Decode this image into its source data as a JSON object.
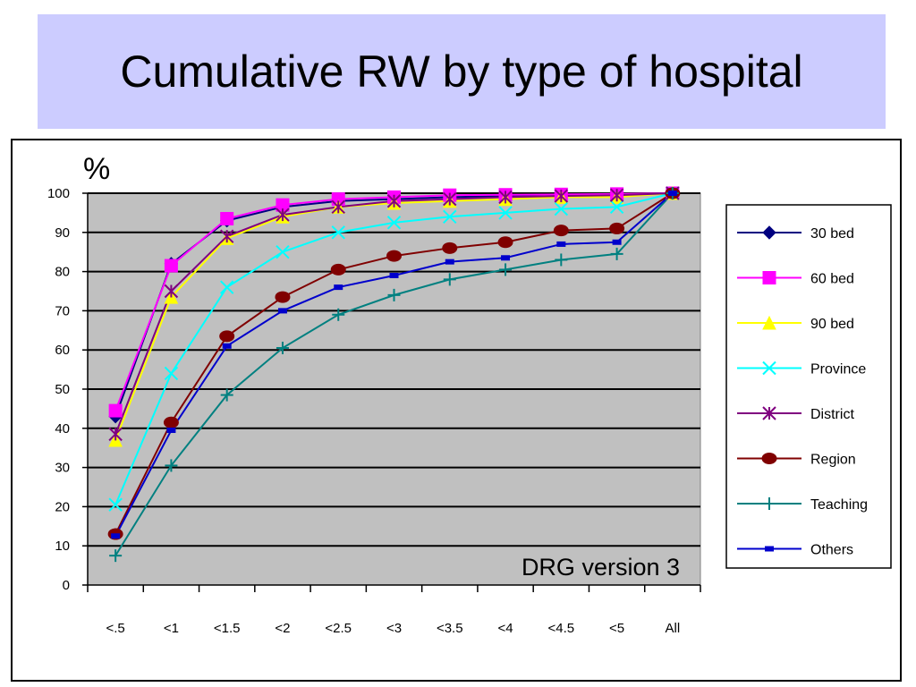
{
  "title": "Cumulative RW by type of hospital",
  "chart_data": {
    "type": "line",
    "ylabel": "%",
    "annotation": "DRG version 3",
    "categories": [
      "<.5",
      "<1",
      "<1.5",
      "<2",
      "<2.5",
      "<3",
      "<3.5",
      "<4",
      "<4.5",
      "<5",
      "All"
    ],
    "ylim": [
      0,
      100
    ],
    "yticks": [
      0,
      10,
      20,
      30,
      40,
      50,
      60,
      70,
      80,
      90,
      100
    ],
    "grid": true,
    "legend_position": "right",
    "plot_background": "#c0c0c0",
    "series": [
      {
        "name": "30 bed",
        "color": "#000080",
        "marker": "diamond",
        "values": [
          43,
          82,
          93,
          96.5,
          98,
          98.5,
          99,
          99.3,
          99.5,
          99.6,
          100
        ]
      },
      {
        "name": "60 bed",
        "color": "#ff00ff",
        "marker": "square",
        "values": [
          44.5,
          81.5,
          93.5,
          97,
          98.5,
          99,
          99.5,
          99.6,
          99.7,
          99.8,
          100
        ]
      },
      {
        "name": "90 bed",
        "color": "#ffff00",
        "marker": "triangle",
        "values": [
          37,
          73.5,
          88.5,
          94,
          96.5,
          97.5,
          98,
          98.5,
          99,
          99,
          100
        ]
      },
      {
        "name": "Province",
        "color": "#00ffff",
        "marker": "x",
        "values": [
          20.5,
          54,
          76,
          85,
          90,
          92.5,
          94,
          95,
          96,
          96.5,
          100
        ]
      },
      {
        "name": "District",
        "color": "#800080",
        "marker": "asterisk",
        "values": [
          38.5,
          75,
          89,
          94.5,
          96.5,
          98,
          98.5,
          99,
          99.3,
          99.5,
          100
        ]
      },
      {
        "name": "Region",
        "color": "#800000",
        "marker": "circle",
        "values": [
          13,
          41.5,
          63.5,
          73.5,
          80.5,
          84,
          86,
          87.5,
          90.5,
          91,
          100
        ]
      },
      {
        "name": "Teaching",
        "color": "#008080",
        "marker": "plus",
        "values": [
          7.5,
          30.5,
          48.5,
          60.5,
          69,
          74,
          78,
          80.5,
          83,
          84.5,
          100
        ]
      },
      {
        "name": "Others",
        "color": "#0000cc",
        "marker": "dash",
        "values": [
          12.5,
          39.5,
          61,
          70,
          76,
          79,
          82.5,
          83.5,
          87,
          87.5,
          100
        ]
      }
    ]
  }
}
